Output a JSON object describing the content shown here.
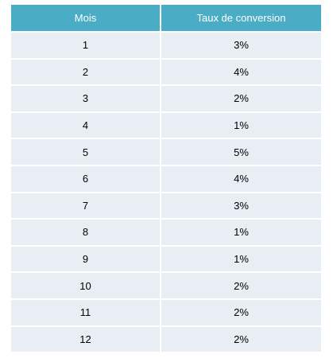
{
  "table": {
    "header": [
      "Mois",
      "Taux de conversion"
    ],
    "rows": [
      [
        "1",
        "3%"
      ],
      [
        "2",
        "4%"
      ],
      [
        "3",
        "2%"
      ],
      [
        "4",
        "1%"
      ],
      [
        "5",
        "5%"
      ],
      [
        "6",
        "4%"
      ],
      [
        "7",
        "3%"
      ],
      [
        "8",
        "1%"
      ],
      [
        "9",
        "1%"
      ],
      [
        "10",
        "2%"
      ],
      [
        "11",
        "2%"
      ],
      [
        "12",
        "2%"
      ]
    ]
  },
  "colors": {
    "header_bg": "#4aacc5",
    "header_text": "#ffffff",
    "cell_bg": "#e9edf4",
    "cell_text": "#000000"
  }
}
